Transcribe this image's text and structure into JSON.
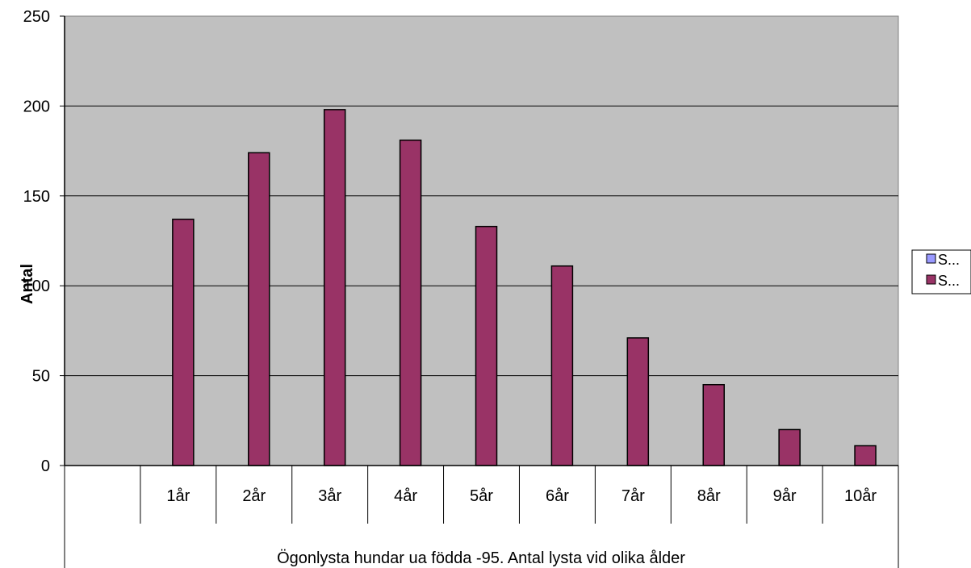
{
  "chart_data": {
    "type": "bar",
    "title": "",
    "ylabel": "Antal",
    "xlabel": "Ögonlysta hundar ua födda -95. Antal lysta vid olika ålder",
    "ylim": [
      0,
      250
    ],
    "yticks": [
      0,
      50,
      100,
      150,
      200,
      250
    ],
    "grid": true,
    "legend_position": "right",
    "categories": [
      "",
      "1år",
      "2år",
      "3år",
      "4år",
      "5år",
      "6år",
      "7år",
      "8år",
      "9år",
      "10år"
    ],
    "series": [
      {
        "name": "S...",
        "color": "#9999ff",
        "values": [
          0,
          0,
          0,
          0,
          0,
          0,
          0,
          0,
          0,
          0,
          0
        ]
      },
      {
        "name": "S...",
        "color": "#993366",
        "values": [
          0,
          137,
          174,
          198,
          181,
          133,
          111,
          71,
          45,
          20,
          11
        ]
      }
    ],
    "plot_background": "#c0c0c0"
  }
}
